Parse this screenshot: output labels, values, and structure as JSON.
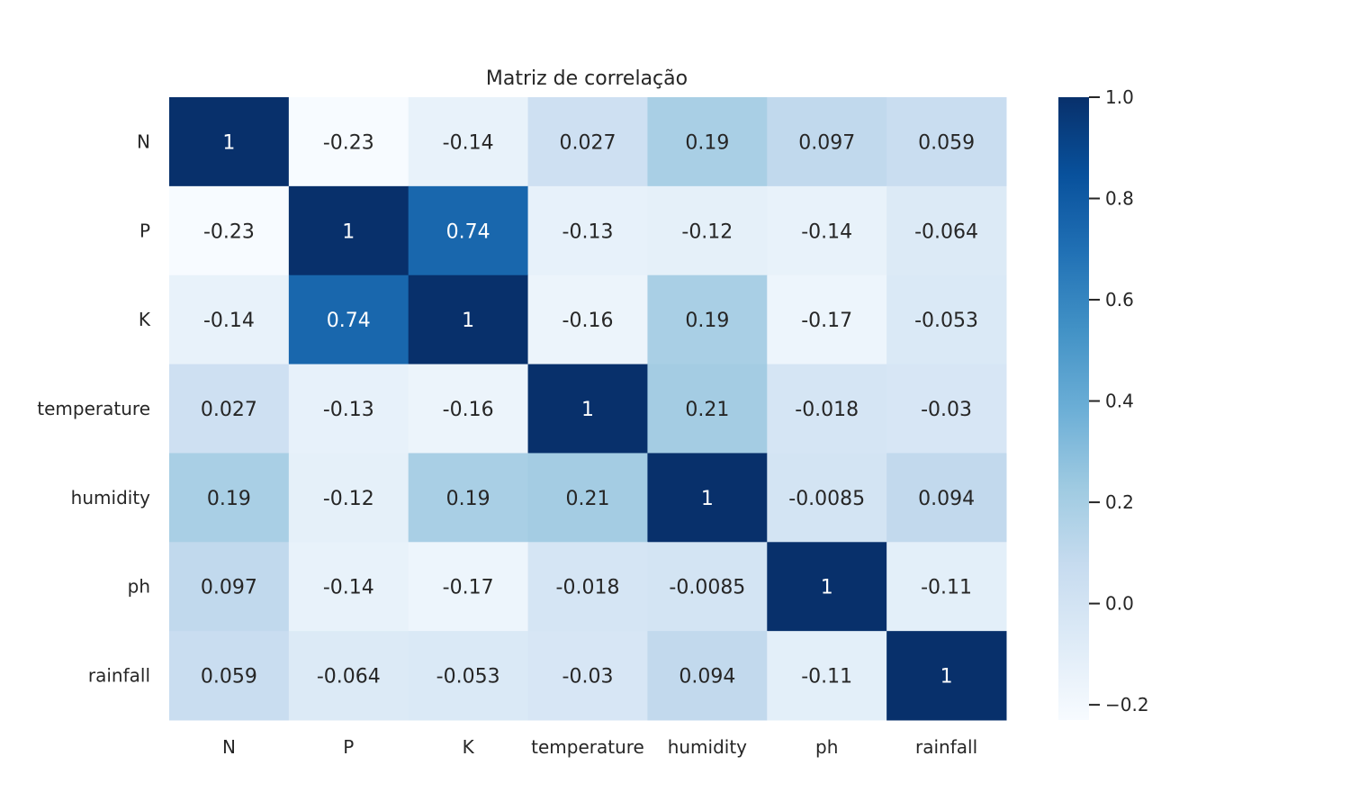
{
  "chart_data": {
    "type": "heatmap",
    "title": "Matriz de correlação",
    "xlabel": "",
    "ylabel": "",
    "x_labels": [
      "N",
      "P",
      "K",
      "temperature",
      "humidity",
      "ph",
      "rainfall"
    ],
    "y_labels": [
      "N",
      "P",
      "K",
      "temperature",
      "humidity",
      "ph",
      "rainfall"
    ],
    "values": [
      [
        1,
        -0.23,
        -0.14,
        0.027,
        0.19,
        0.097,
        0.059
      ],
      [
        -0.23,
        1,
        0.74,
        -0.13,
        -0.12,
        -0.14,
        -0.064
      ],
      [
        -0.14,
        0.74,
        1,
        -0.16,
        0.19,
        -0.17,
        -0.053
      ],
      [
        0.027,
        -0.13,
        -0.16,
        1,
        0.21,
        -0.018,
        -0.03
      ],
      [
        0.19,
        -0.12,
        0.19,
        0.21,
        1,
        -0.0085,
        0.094
      ],
      [
        0.097,
        -0.14,
        -0.17,
        -0.018,
        -0.0085,
        1,
        -0.11
      ],
      [
        0.059,
        -0.064,
        -0.053,
        -0.03,
        0.094,
        -0.11,
        1
      ]
    ],
    "annotations": [
      [
        "1",
        "-0.23",
        "-0.14",
        "0.027",
        "0.19",
        "0.097",
        "0.059"
      ],
      [
        "-0.23",
        "1",
        "0.74",
        "-0.13",
        "-0.12",
        "-0.14",
        "-0.064"
      ],
      [
        "-0.14",
        "0.74",
        "1",
        "-0.16",
        "0.19",
        "-0.17",
        "-0.053"
      ],
      [
        "0.027",
        "-0.13",
        "-0.16",
        "1",
        "0.21",
        "-0.018",
        "-0.03"
      ],
      [
        "0.19",
        "-0.12",
        "0.19",
        "0.21",
        "1",
        "-0.0085",
        "0.094"
      ],
      [
        "0.097",
        "-0.14",
        "-0.17",
        "-0.018",
        "-0.0085",
        "1",
        "-0.11"
      ],
      [
        "0.059",
        "-0.064",
        "-0.053",
        "-0.03",
        "0.094",
        "-0.11",
        "1"
      ]
    ],
    "colormap": "Blues",
    "vmin": -0.23,
    "vmax": 1.0,
    "colorbar": {
      "ticks": [
        1.0,
        0.8,
        0.6,
        0.4,
        0.2,
        0.0,
        -0.2
      ],
      "tick_labels": [
        "1.0",
        "0.8",
        "0.6",
        "0.4",
        "0.2",
        "0.0",
        "−0.2"
      ]
    },
    "grid": false,
    "legend": "colorbar-right"
  }
}
